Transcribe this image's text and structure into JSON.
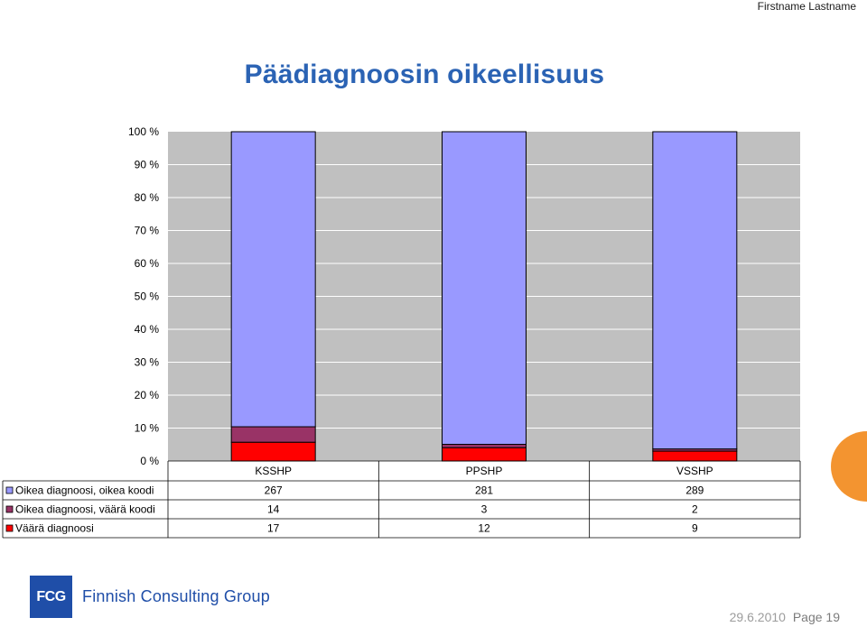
{
  "header": {
    "author": "Firstname Lastname"
  },
  "footer": {
    "date": "29.6.2010",
    "page": "Page 19"
  },
  "logo": {
    "mark": "FCG",
    "company": "Finnish Consulting Group"
  },
  "colors": {
    "title": "#2b63b4",
    "accent": "#f39430",
    "plot_bg": "#c0c0c0",
    "brand": "#1f4ea8"
  },
  "chart_data": {
    "type": "bar",
    "stacked": "percent",
    "title": "Päädiagnoosin oikeellisuus",
    "categories": [
      "KSSHP",
      "PPSHP",
      "VSSHP"
    ],
    "y_ticks": [
      "0 %",
      "10 %",
      "20 %",
      "30 %",
      "40 %",
      "50 %",
      "60 %",
      "70 %",
      "80 %",
      "90 %",
      "100 %"
    ],
    "ylim": [
      0,
      100
    ],
    "grid": true,
    "legend": "data-table",
    "series": [
      {
        "name": "Väärä diagnoosi",
        "values": [
          17,
          12,
          9
        ],
        "color": "#ff0000"
      },
      {
        "name": "Oikea diagnoosi, väärä koodi",
        "values": [
          14,
          3,
          2
        ],
        "color": "#993366"
      },
      {
        "name": "Oikea diagnoosi, oikea koodi",
        "values": [
          267,
          281,
          289
        ],
        "color": "#9999ff"
      }
    ],
    "table_order": [
      2,
      1,
      0
    ]
  }
}
